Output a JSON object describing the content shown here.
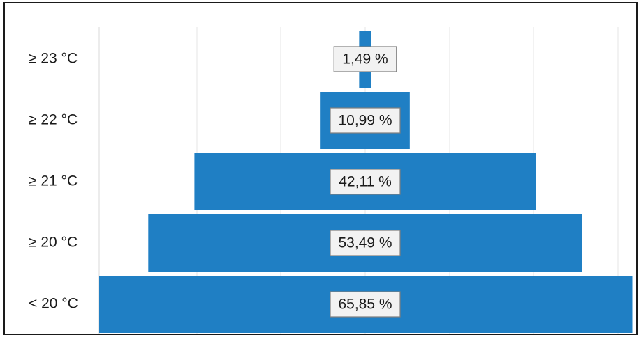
{
  "chart_data": {
    "type": "bar",
    "orientation": "horizontal",
    "layout": "funnel",
    "categories": [
      "≥ 23 °C",
      "≥ 22 °C",
      "≥ 21 °C",
      "≥ 20 °C",
      "< 20 °C"
    ],
    "values": [
      1.49,
      10.99,
      42.11,
      53.49,
      65.85
    ],
    "data_labels": [
      "1,49  %",
      "10,99  %",
      "42,11  %",
      "53,49  %",
      "65,85  %"
    ],
    "title": "",
    "xlabel": "",
    "ylabel": "",
    "unit": "%",
    "grid": "vertical gridlines",
    "legend": "none",
    "colors": {
      "bar": "#1f7fc4",
      "label_box_fill": "#f2f2f2",
      "label_box_border": "#7f7f7f",
      "gridline": "#e6e6e6",
      "axis_line": "#d9d9d9",
      "frame": "#1a1a1a"
    }
  }
}
